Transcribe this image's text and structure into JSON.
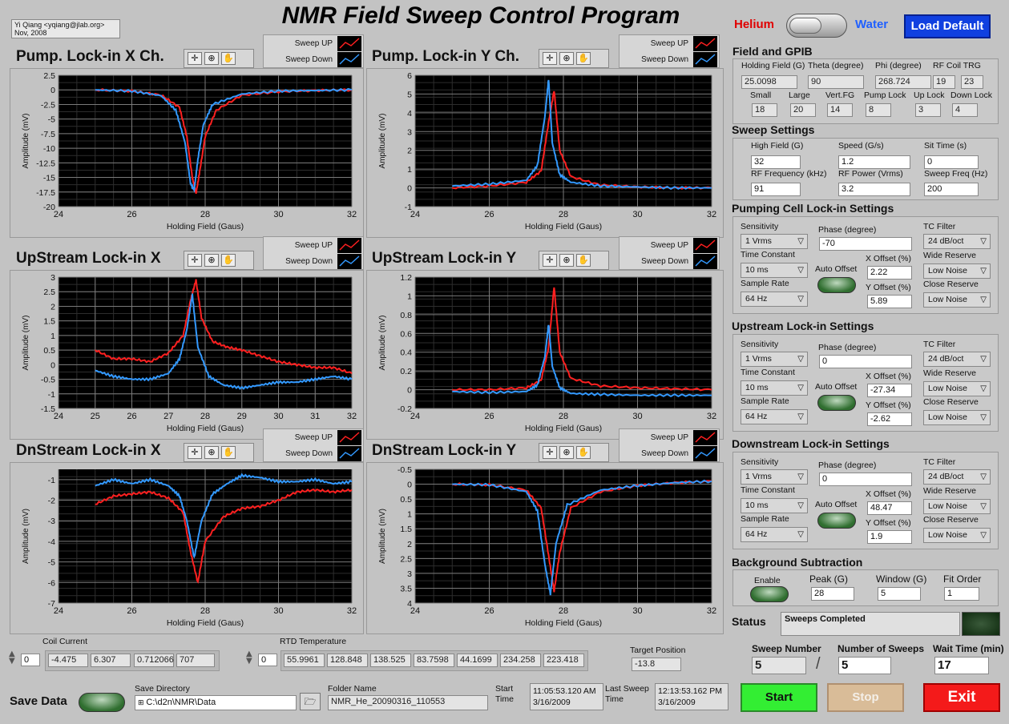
{
  "author": {
    "line1": "Yi Qiang <yqiang@jlab.org>",
    "line2": "Nov, 2008"
  },
  "title": "NMR Field Sweep Control Program",
  "mode": {
    "left": "Helium",
    "right": "Water",
    "load_default": "Load Default",
    "left_color": "#e00000",
    "right_color": "#2060ff"
  },
  "legend": {
    "up": "Sweep UP",
    "down": "Sweep Down"
  },
  "colors": {
    "up": "#ff2020",
    "down": "#3399ff"
  },
  "plots": [
    {
      "title": "Pump. Lock-in X Ch.",
      "xlabel": "Holding Field (Gaus)",
      "ylabel": "Amplitude (mV)"
    },
    {
      "title": "Pump. Lock-in Y Ch.",
      "xlabel": "Holding Field (Gaus)",
      "ylabel": "Amplitude (mV)"
    },
    {
      "title": "UpStream Lock-in X",
      "xlabel": "Holding Field (Gaus)",
      "ylabel": "Amplitude (mV)"
    },
    {
      "title": "UpStream Lock-in Y",
      "xlabel": "Holding Field (Gaus)",
      "ylabel": "Amplitude (mV)"
    },
    {
      "title": "DnStream Lock-in X",
      "xlabel": "Holding Field (Gaus)",
      "ylabel": "Amplitude (mV)"
    },
    {
      "title": "DnStream Lock-in Y",
      "xlabel": "Holding Field (Gaus)",
      "ylabel": "Amplitude (mV)"
    }
  ],
  "chart_data": [
    {
      "type": "line",
      "title": "Pump. Lock-in X Ch.",
      "xlim": [
        24,
        32
      ],
      "ylim": [
        -20,
        2.5
      ],
      "xticks": [
        "24",
        "26",
        "28",
        "30",
        "32"
      ],
      "yticks": [
        "2.5",
        "0",
        "-2.5",
        "-5",
        "-7.5",
        "-10",
        "-12.5",
        "-15",
        "-17.5",
        "-20"
      ],
      "series": [
        {
          "name": "Sweep UP",
          "x": [
            25,
            26,
            26.8,
            27.3,
            27.5,
            27.65,
            27.75,
            27.85,
            28.0,
            28.3,
            29,
            30,
            31,
            32
          ],
          "y": [
            0,
            -0.2,
            -0.9,
            -3,
            -8,
            -15,
            -17.8,
            -14,
            -8,
            -3.5,
            -0.9,
            -0.3,
            -0.1,
            0
          ]
        },
        {
          "name": "Sweep Down",
          "x": [
            25,
            26,
            26.8,
            27.2,
            27.45,
            27.6,
            27.7,
            27.8,
            27.95,
            28.2,
            29,
            30,
            31,
            32
          ],
          "y": [
            0,
            -0.2,
            -1,
            -3.5,
            -9,
            -16,
            -17.2,
            -12,
            -6,
            -2.5,
            -0.7,
            -0.2,
            -0.1,
            0
          ]
        }
      ]
    },
    {
      "type": "line",
      "title": "Pump. Lock-in Y Ch.",
      "xlim": [
        24,
        32
      ],
      "ylim": [
        -1,
        6
      ],
      "xticks": [
        "24",
        "26",
        "28",
        "30",
        "32"
      ],
      "yticks": [
        "6",
        "5",
        "4",
        "3",
        "2",
        "1",
        "0",
        "-1"
      ],
      "series": [
        {
          "name": "Sweep UP",
          "x": [
            25,
            26,
            27,
            27.4,
            27.6,
            27.75,
            27.9,
            28.2,
            29,
            30,
            31,
            32
          ],
          "y": [
            0,
            0.1,
            0.3,
            0.9,
            3.5,
            5.2,
            2,
            0.6,
            0.15,
            0.05,
            0,
            0
          ]
        },
        {
          "name": "Sweep Down",
          "x": [
            25,
            26,
            27,
            27.3,
            27.5,
            27.6,
            27.7,
            27.9,
            28.2,
            29,
            30,
            31,
            32
          ],
          "y": [
            0.1,
            0.2,
            0.4,
            1.2,
            3.8,
            5.8,
            2.4,
            0.7,
            0.3,
            0.1,
            0.05,
            0,
            0
          ]
        }
      ]
    },
    {
      "type": "line",
      "title": "UpStream Lock-in X",
      "xlim": [
        24,
        32
      ],
      "ylim": [
        -1.5,
        3
      ],
      "xticks": [
        "24",
        "25",
        "26",
        "27",
        "28",
        "29",
        "30",
        "31",
        "32"
      ],
      "yticks": [
        "3",
        "2.5",
        "2",
        "1.5",
        "1",
        "0.5",
        "0",
        "-0.5",
        "-1",
        "-1.5"
      ],
      "series": [
        {
          "name": "Sweep UP",
          "x": [
            25,
            25.5,
            26,
            26.5,
            27,
            27.4,
            27.6,
            27.75,
            27.9,
            28.2,
            28.6,
            29,
            29.5,
            30,
            30.5,
            31,
            31.5,
            32
          ],
          "y": [
            0.5,
            0.2,
            0.2,
            0.1,
            0.4,
            1.0,
            2.2,
            2.9,
            1.6,
            0.8,
            0.6,
            0.5,
            0.3,
            0.1,
            0,
            -0.1,
            -0.1,
            -0.3
          ]
        },
        {
          "name": "Sweep Down",
          "x": [
            25,
            25.5,
            26,
            26.5,
            27,
            27.3,
            27.5,
            27.65,
            27.8,
            28.1,
            28.5,
            29,
            29.5,
            30,
            30.5,
            31,
            31.5,
            32
          ],
          "y": [
            -0.2,
            -0.4,
            -0.5,
            -0.5,
            -0.3,
            0.2,
            1.2,
            2.4,
            0.6,
            -0.4,
            -0.7,
            -0.8,
            -0.7,
            -0.6,
            -0.6,
            -0.5,
            -0.4,
            -0.5
          ]
        }
      ]
    },
    {
      "type": "line",
      "title": "UpStream Lock-in Y",
      "xlim": [
        24,
        32
      ],
      "ylim": [
        -0.2,
        1.2
      ],
      "xticks": [
        "24",
        "26",
        "28",
        "30",
        "32"
      ],
      "yticks": [
        "1.2",
        "1",
        "0.8",
        "0.6",
        "0.4",
        "0.2",
        "0",
        "-0.2"
      ],
      "series": [
        {
          "name": "Sweep UP",
          "x": [
            25,
            26,
            27,
            27.4,
            27.6,
            27.75,
            27.9,
            28.2,
            29,
            30,
            31,
            32
          ],
          "y": [
            0,
            0,
            0.02,
            0.1,
            0.45,
            1.1,
            0.4,
            0.12,
            0.04,
            0.02,
            0.01,
            0
          ]
        },
        {
          "name": "Sweep Down",
          "x": [
            25,
            26,
            27,
            27.3,
            27.5,
            27.6,
            27.7,
            27.9,
            28.2,
            29,
            30,
            31,
            32
          ],
          "y": [
            -0.02,
            -0.03,
            -0.02,
            0.05,
            0.35,
            0.7,
            0.25,
            0.02,
            -0.04,
            -0.05,
            -0.06,
            -0.06,
            -0.06
          ]
        }
      ]
    },
    {
      "type": "line",
      "title": "DnStream Lock-in X",
      "xlim": [
        24,
        32
      ],
      "ylim": [
        -7,
        -0.5
      ],
      "xticks": [
        "24",
        "26",
        "28",
        "30",
        "32"
      ],
      "yticks": [
        "-1",
        "-2",
        "-3",
        "-4",
        "-5",
        "-6",
        "-7"
      ],
      "series": [
        {
          "name": "Sweep UP",
          "x": [
            25,
            25.5,
            26,
            26.5,
            27,
            27.4,
            27.6,
            27.8,
            28,
            28.5,
            29,
            29.5,
            30,
            30.5,
            31,
            31.5,
            32
          ],
          "y": [
            -2.2,
            -1.8,
            -1.7,
            -1.6,
            -1.9,
            -2.6,
            -4.5,
            -6.0,
            -4.0,
            -2.8,
            -2.4,
            -2.3,
            -2.0,
            -1.6,
            -1.5,
            -1.6,
            -1.5
          ]
        },
        {
          "name": "Sweep Down",
          "x": [
            25,
            25.5,
            26,
            26.5,
            27,
            27.3,
            27.5,
            27.7,
            27.9,
            28.2,
            28.6,
            29,
            29.5,
            30,
            30.5,
            31,
            31.5,
            32
          ],
          "y": [
            -1.3,
            -1.0,
            -1.2,
            -1.0,
            -1.3,
            -1.8,
            -3.0,
            -4.8,
            -3.0,
            -1.7,
            -1.2,
            -0.8,
            -0.9,
            -1.1,
            -1.1,
            -1.0,
            -1.2,
            -1.1
          ]
        }
      ]
    },
    {
      "type": "line",
      "title": "DnStream Lock-in Y",
      "xlim": [
        24,
        32
      ],
      "ylim": [
        -0.5,
        4
      ],
      "yreversed": true,
      "xticks": [
        "24",
        "26",
        "28",
        "30",
        "32"
      ],
      "yticks": [
        "-0.5",
        "0",
        "0.5",
        "1",
        "1.5",
        "2",
        "2.5",
        "3",
        "3.5",
        "4"
      ],
      "series": [
        {
          "name": "Sweep UP",
          "x": [
            25,
            26,
            27,
            27.4,
            27.6,
            27.75,
            27.9,
            28.2,
            29,
            30,
            31,
            32
          ],
          "y": [
            0,
            0.02,
            0.2,
            0.8,
            2.4,
            3.6,
            2.3,
            0.8,
            0.25,
            0.05,
            -0.05,
            -0.1
          ]
        },
        {
          "name": "Sweep Down",
          "x": [
            25,
            26,
            27,
            27.3,
            27.5,
            27.65,
            27.8,
            28.1,
            29,
            30,
            31,
            32
          ],
          "y": [
            0,
            0.02,
            0.25,
            0.9,
            2.7,
            3.7,
            2.0,
            0.7,
            0.2,
            0.05,
            -0.05,
            -0.1
          ]
        }
      ]
    }
  ],
  "field_gpib": {
    "title": "Field and GPIB",
    "row1": [
      {
        "label": "Holding Field (G)",
        "value": "25.0098"
      },
      {
        "label": "Theta (degree)",
        "value": "90"
      },
      {
        "label": "Phi (degree)",
        "value": "268.724"
      },
      {
        "label": "RF Coil TRG",
        "value": "19",
        "value2": "23"
      }
    ],
    "row2": [
      {
        "label": "Small",
        "value": "18"
      },
      {
        "label": "Large",
        "value": "20"
      },
      {
        "label": "Vert.FG",
        "value": "14"
      },
      {
        "label": "Pump Lock",
        "value": "8"
      },
      {
        "label": "Up Lock",
        "value": "3"
      },
      {
        "label": "Down Lock",
        "value": "4"
      }
    ]
  },
  "sweep": {
    "title": "Sweep Settings",
    "fields": [
      {
        "label": "High Field (G)",
        "value": "32"
      },
      {
        "label": "Speed (G/s)",
        "value": "1.2"
      },
      {
        "label": "Sit Time (s)",
        "value": "0"
      },
      {
        "label": "RF Frequency (kHz)",
        "value": "91"
      },
      {
        "label": "RF Power (Vrms)",
        "value": "3.2"
      },
      {
        "label": "Sweep Freq (Hz)",
        "value": "200"
      }
    ]
  },
  "lockins": [
    {
      "title": "Pumping Cell Lock-in Settings",
      "sensitivity": "1 Vrms",
      "phase": "-70",
      "tc": "10 ms",
      "rate": "64 Hz",
      "xoff": "2.22",
      "yoff": "5.89",
      "tcf": "24 dB/oct",
      "wide": "Low Noise",
      "close": "Low Noise"
    },
    {
      "title": "Upstream Lock-in Settings",
      "sensitivity": "1 Vrms",
      "phase": "0",
      "tc": "10 ms",
      "rate": "64 Hz",
      "xoff": "-27.34",
      "yoff": "-2.62",
      "tcf": "24 dB/oct",
      "wide": "Low Noise",
      "close": "Low Noise"
    },
    {
      "title": "Downstream Lock-in Settings",
      "sensitivity": "1 Vrms",
      "phase": "0",
      "tc": "10 ms",
      "rate": "64 Hz",
      "xoff": "48.47",
      "yoff": "1.9",
      "tcf": "24 dB/oct",
      "wide": "Low Noise",
      "close": "Low Noise"
    }
  ],
  "lockin_labels": {
    "sensitivity": "Sensitivity",
    "phase": "Phase (degree)",
    "tc": "Time Constant",
    "rate": "Sample Rate",
    "auto": "Auto Offset",
    "xoff": "X Offset (%)",
    "yoff": "Y Offset (%)",
    "tcf": "TC Filter",
    "wide": "Wide Reserve",
    "close": "Close Reserve"
  },
  "bg": {
    "title": "Background Subtraction",
    "enable": "Enable",
    "peak_label": "Peak (G)",
    "peak": "28",
    "window_label": "Window (G)",
    "window": "5",
    "order_label": "Fit Order",
    "order": "1"
  },
  "status": {
    "label": "Status",
    "text": "Sweeps Completed"
  },
  "counts": {
    "sweep_number_label": "Sweep Number",
    "sweep_number": "5",
    "num_sweeps_label": "Number of Sweeps",
    "num_sweeps": "5",
    "wait_label": "Wait Time (min)",
    "wait": "17",
    "slash": "/"
  },
  "buttons": {
    "start": "Start",
    "stop": "Stop",
    "exit": "Exit"
  },
  "coil": {
    "label": "Coil Current",
    "index": "0",
    "values": [
      "-4.475",
      "6.307",
      "0.712066",
      "707"
    ]
  },
  "rtd": {
    "label": "RTD Temperature",
    "index": "0",
    "values": [
      "55.9961",
      "128.848",
      "138.525",
      "83.7598",
      "44.1699",
      "234.258",
      "223.418"
    ]
  },
  "target": {
    "label": "Target Position",
    "value": "-13.8"
  },
  "save": {
    "label": "Save Data",
    "dir_label": "Save Directory",
    "dir": "C:\\d2n\\NMR\\Data",
    "folder_label": "Folder Name",
    "folder": "NMR_He_20090316_110553"
  },
  "times": {
    "start_label": "Start Time",
    "start_line1": "11:05:53.120 AM",
    "start_line2": "3/16/2009",
    "last_label": "Last Sweep Time",
    "last_line1": "12:13:53.162 PM",
    "last_line2": "3/16/2009"
  }
}
